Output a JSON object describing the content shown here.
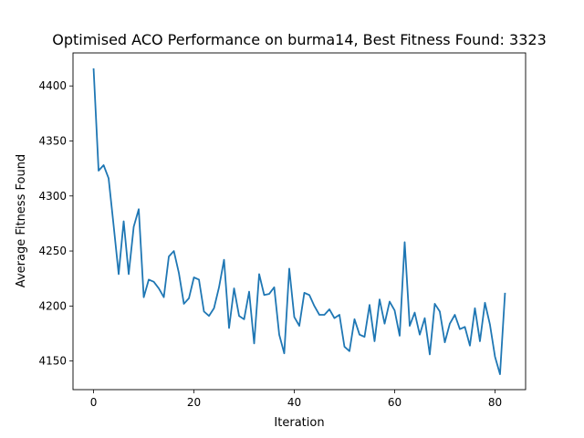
{
  "chart_data": {
    "type": "line",
    "title": "Optimised ACO Performance on burma14, Best Fitness Found: 3323",
    "xlabel": "Iteration",
    "ylabel": "Average Fitness Found",
    "xlim": [
      -4.1,
      86.1
    ],
    "ylim": [
      4124,
      4430
    ],
    "xticks": [
      0,
      20,
      40,
      60,
      80
    ],
    "yticks": [
      4150,
      4200,
      4250,
      4300,
      4350,
      4400
    ],
    "grid": false,
    "line_color": "#1f77b4",
    "series": [
      {
        "x": [
          0,
          1,
          2,
          3,
          4,
          5,
          6,
          7,
          8,
          9,
          10,
          11,
          12,
          13,
          14,
          15,
          16,
          17,
          18,
          19,
          20,
          21,
          22,
          23,
          24,
          25,
          26,
          27,
          28,
          29,
          30,
          31,
          32,
          33,
          34,
          35,
          36,
          37,
          38,
          39,
          40,
          41,
          42,
          43,
          44,
          45,
          46,
          47,
          48,
          49,
          50,
          51,
          52,
          53,
          54,
          55,
          56,
          57,
          58,
          59,
          60,
          61,
          62,
          63,
          64,
          65,
          66,
          67,
          68,
          69,
          70,
          71,
          72,
          73,
          74,
          75,
          76,
          77,
          78,
          79,
          80,
          81,
          82
        ],
        "values": [
          4416,
          4323,
          4328,
          4316,
          4273,
          4229,
          4277,
          4229,
          4272,
          4288,
          4208,
          4224,
          4222,
          4216,
          4208,
          4245,
          4250,
          4230,
          4202,
          4207,
          4226,
          4224,
          4195,
          4191,
          4198,
          4217,
          4242,
          4180,
          4216,
          4191,
          4188,
          4213,
          4166,
          4229,
          4210,
          4211,
          4217,
          4174,
          4157,
          4234,
          4190,
          4182,
          4212,
          4210,
          4200,
          4192,
          4192,
          4197,
          4189,
          4192,
          4163,
          4159,
          4188,
          4174,
          4172,
          4201,
          4168,
          4206,
          4184,
          4204,
          4196,
          4173,
          4258,
          4182,
          4194,
          4174,
          4189,
          4156,
          4202,
          4195,
          4167,
          4184,
          4192,
          4179,
          4181,
          4164,
          4198,
          4168,
          4203,
          4183,
          4154,
          4138,
          4212
        ]
      }
    ]
  }
}
